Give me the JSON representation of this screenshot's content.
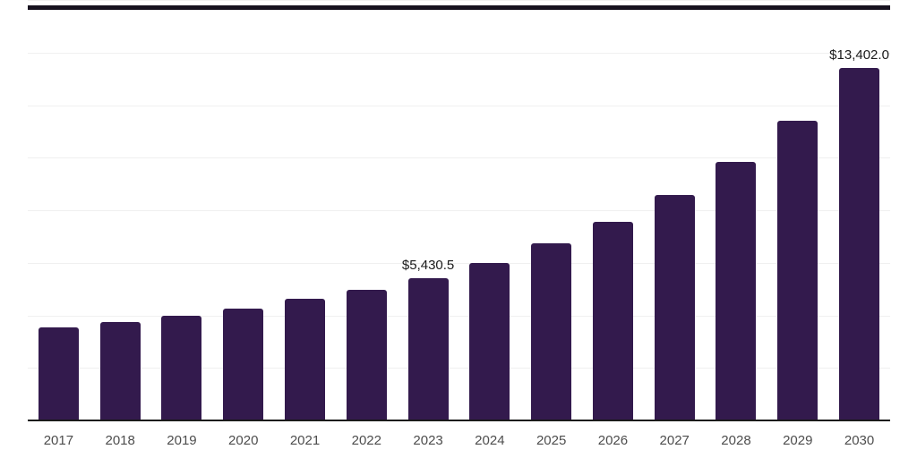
{
  "chart_data": {
    "type": "bar",
    "title": "",
    "xlabel": "",
    "ylabel": "",
    "categories": [
      "2017",
      "2018",
      "2019",
      "2020",
      "2021",
      "2022",
      "2023",
      "2024",
      "2025",
      "2026",
      "2027",
      "2028",
      "2029",
      "2030"
    ],
    "values": [
      3530,
      3745,
      3990,
      4265,
      4635,
      4975,
      5430.5,
      6000,
      6730,
      7550,
      8580,
      9840,
      11420,
      13402
    ],
    "data_labels": {
      "2023": "$5,430.5",
      "2030": "$13,402.0"
    },
    "ylim": [
      0,
      16000
    ],
    "gridline_values": [
      2000,
      4000,
      6000,
      8000,
      10000,
      12000,
      14000,
      16000
    ],
    "grid": "horizontal-only",
    "legend": "none",
    "colors": {
      "bar": "#331A4D",
      "axis_line": "#1A1A1A",
      "plot_top_border": "#17121F",
      "gridline": "#F0F0F0",
      "tick_label": "#4D4D4D",
      "data_label": "#1A1A1A",
      "background": "#FFFFFF"
    }
  }
}
